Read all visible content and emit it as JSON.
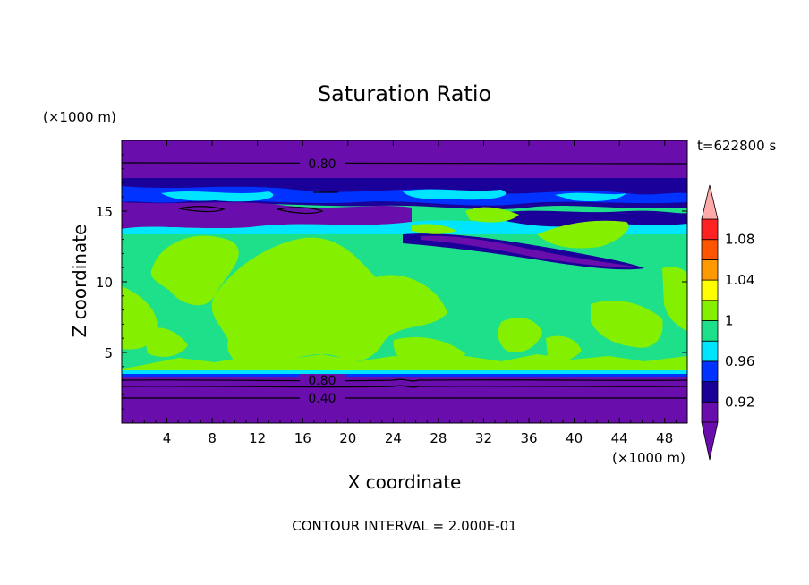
{
  "chart_data": {
    "type": "heatmap",
    "title": "Saturation Ratio",
    "xlabel": "X coordinate",
    "ylabel": "Z coordinate",
    "x_units": "(×1000 m)",
    "y_units": "(×1000 m)",
    "time_label": "t=622800 s",
    "footer": "CONTOUR INTERVAL = 2.000E-01",
    "xlim": [
      0,
      50
    ],
    "ylim": [
      0,
      20
    ],
    "x_ticks": [
      "4",
      "8",
      "12",
      "16",
      "20",
      "24",
      "28",
      "32",
      "36",
      "40",
      "44",
      "48"
    ],
    "y_ticks": [
      "5",
      "10",
      "15"
    ],
    "contour_labels": [
      "0.80",
      "0.80",
      "0.40"
    ],
    "colorbar": {
      "labels": [
        "0.92",
        "0.96",
        "1",
        "1.04",
        "1.08"
      ],
      "levels": [
        0.9,
        0.92,
        0.94,
        0.96,
        0.98,
        1.0,
        1.02,
        1.04,
        1.06,
        1.08,
        1.1
      ],
      "colors": [
        "#6a0dad",
        "#1a0099",
        "#0033ff",
        "#00e5ff",
        "#1fe08a",
        "#84f000",
        "#ffff00",
        "#ff9900",
        "#ff5500",
        "#ff2222"
      ],
      "over_color": "#ffaaaa",
      "under_color": "#6a0dad"
    }
  }
}
